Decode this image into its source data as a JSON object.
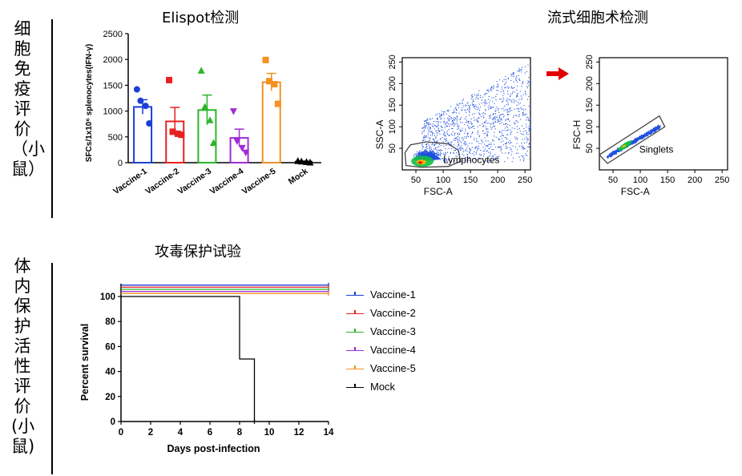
{
  "side_labels": {
    "top": "细胞免疫评价（小鼠）",
    "bottom": "体内保护活性评价(小鼠)"
  },
  "titles": {
    "elispot": "Elispot检测",
    "flow": "流式细胞术检测",
    "challenge": "攻毒保护试验"
  },
  "colors": {
    "blue": "#1a3fd6",
    "red": "#e82020",
    "green": "#2ab52a",
    "purple": "#a12bd6",
    "orange": "#f39220",
    "black": "#000000",
    "flow_dots": "#1d4fe0",
    "arrow": "#e00000"
  },
  "chart_data": [
    {
      "type": "bar",
      "title": "Elispot检测",
      "ylabel": "SFCs/1x10⁶ splenocytes(IFN-γ)",
      "ylim": [
        0,
        2500
      ],
      "yticks": [
        0,
        500,
        1000,
        1500,
        2000,
        2500
      ],
      "categories": [
        "Vaccine-1",
        "Vaccine-2",
        "Vaccine-3",
        "Vaccine-4",
        "Vaccine-5",
        "Mock"
      ],
      "values": [
        1080,
        800,
        1020,
        480,
        1560,
        20
      ],
      "errors": [
        140,
        270,
        290,
        170,
        170,
        10
      ],
      "colors": [
        "#1a3fd6",
        "#e82020",
        "#2ab52a",
        "#a12bd6",
        "#f39220",
        "#000000"
      ],
      "markers": [
        "circle",
        "square",
        "triangle",
        "triangle-down",
        "square",
        "triangle"
      ],
      "points": [
        [
          1420,
          1200,
          1100,
          760
        ],
        [
          1600,
          600,
          560,
          540
        ],
        [
          1780,
          1080,
          820,
          380
        ],
        [
          1000,
          420,
          290,
          200
        ],
        [
          1990,
          1580,
          1520,
          1140
        ],
        [
          30,
          20,
          10,
          0
        ]
      ],
      "grid": false
    },
    {
      "type": "scatter",
      "title": "流式细胞术检测",
      "panels": [
        {
          "xlabel": "FSC-A",
          "ylabel": "SSC-A",
          "xlim": [
            25,
            260
          ],
          "ylim": [
            0,
            260
          ],
          "xticks": [
            50,
            100,
            150,
            200,
            250
          ],
          "yticks": [
            50,
            100,
            150,
            200,
            250
          ],
          "gate_label": "Lymphocytes"
        },
        {
          "xlabel": "FSC-A",
          "ylabel": "FSC-H",
          "xlim": [
            25,
            260
          ],
          "ylim": [
            0,
            260
          ],
          "xticks": [
            50,
            100,
            150,
            200,
            250
          ],
          "yticks": [
            50,
            100,
            150,
            200,
            250
          ],
          "gate_label": "Singlets"
        }
      ]
    },
    {
      "type": "line",
      "title": "攻毒保护试验",
      "xlabel": "Days post-infection",
      "ylabel": "Percent survival",
      "xlim": [
        0,
        14
      ],
      "ylim": [
        0,
        100
      ],
      "xticks": [
        0,
        2,
        4,
        6,
        8,
        10,
        12,
        14
      ],
      "yticks": [
        0,
        20,
        40,
        60,
        80,
        100
      ],
      "legend_position": "right",
      "series": [
        {
          "name": "Vaccine-1",
          "color": "#1a3fd6",
          "steps": [
            [
              0,
              100
            ],
            [
              14,
              100
            ]
          ]
        },
        {
          "name": "Vaccine-2",
          "color": "#e82020",
          "steps": [
            [
              0,
              100
            ],
            [
              14,
              100
            ]
          ]
        },
        {
          "name": "Vaccine-3",
          "color": "#2ab52a",
          "steps": [
            [
              0,
              100
            ],
            [
              14,
              100
            ]
          ]
        },
        {
          "name": "Vaccine-4",
          "color": "#a12bd6",
          "steps": [
            [
              0,
              100
            ],
            [
              14,
              100
            ]
          ]
        },
        {
          "name": "Vaccine-5",
          "color": "#f39220",
          "steps": [
            [
              0,
              100
            ],
            [
              14,
              100
            ]
          ]
        },
        {
          "name": "Mock",
          "color": "#000000",
          "steps": [
            [
              0,
              100
            ],
            [
              8,
              100
            ],
            [
              8,
              50
            ],
            [
              9,
              50
            ],
            [
              9,
              0
            ]
          ]
        }
      ]
    }
  ]
}
